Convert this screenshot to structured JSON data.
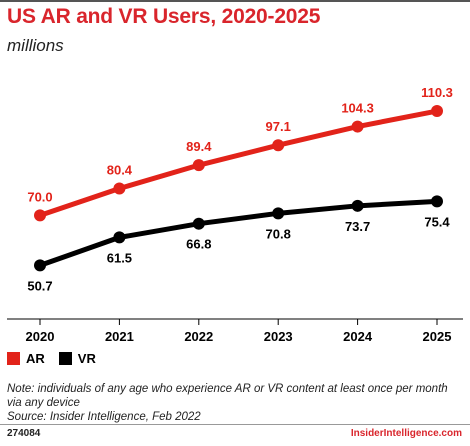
{
  "header": {
    "title": "US AR and VR Users, 2020-2025",
    "subtitle": "millions"
  },
  "colors": {
    "ar": "#e2231a",
    "vr": "#000000",
    "accent": "#d9252c"
  },
  "chart_data": {
    "type": "line",
    "title": "US AR and VR Users, 2020-2025",
    "subtitle": "millions",
    "x": [
      "2020",
      "2021",
      "2022",
      "2023",
      "2024",
      "2025"
    ],
    "series": [
      {
        "name": "AR",
        "values": [
          70.0,
          80.4,
          89.4,
          97.1,
          104.3,
          110.3
        ],
        "labels": [
          "70.0",
          "80.4",
          "89.4",
          "97.1",
          "104.3",
          "110.3"
        ],
        "color": "#e2231a"
      },
      {
        "name": "VR",
        "values": [
          50.7,
          61.5,
          66.8,
          70.8,
          73.7,
          75.4
        ],
        "labels": [
          "50.7",
          "61.5",
          "66.8",
          "70.8",
          "73.7",
          "75.4"
        ],
        "color": "#000000"
      }
    ],
    "ylim": [
      30,
      130
    ],
    "grid": false,
    "legend": "bottom-left"
  },
  "legend": {
    "items": [
      "AR",
      "VR"
    ]
  },
  "footer": {
    "note": "Note: individuals of any age who experience AR or VR content at least once per month via any device",
    "source": "Source: Insider Intelligence, Feb 2022",
    "chart_id": "274084",
    "brand": "InsiderIntelligence.com"
  }
}
